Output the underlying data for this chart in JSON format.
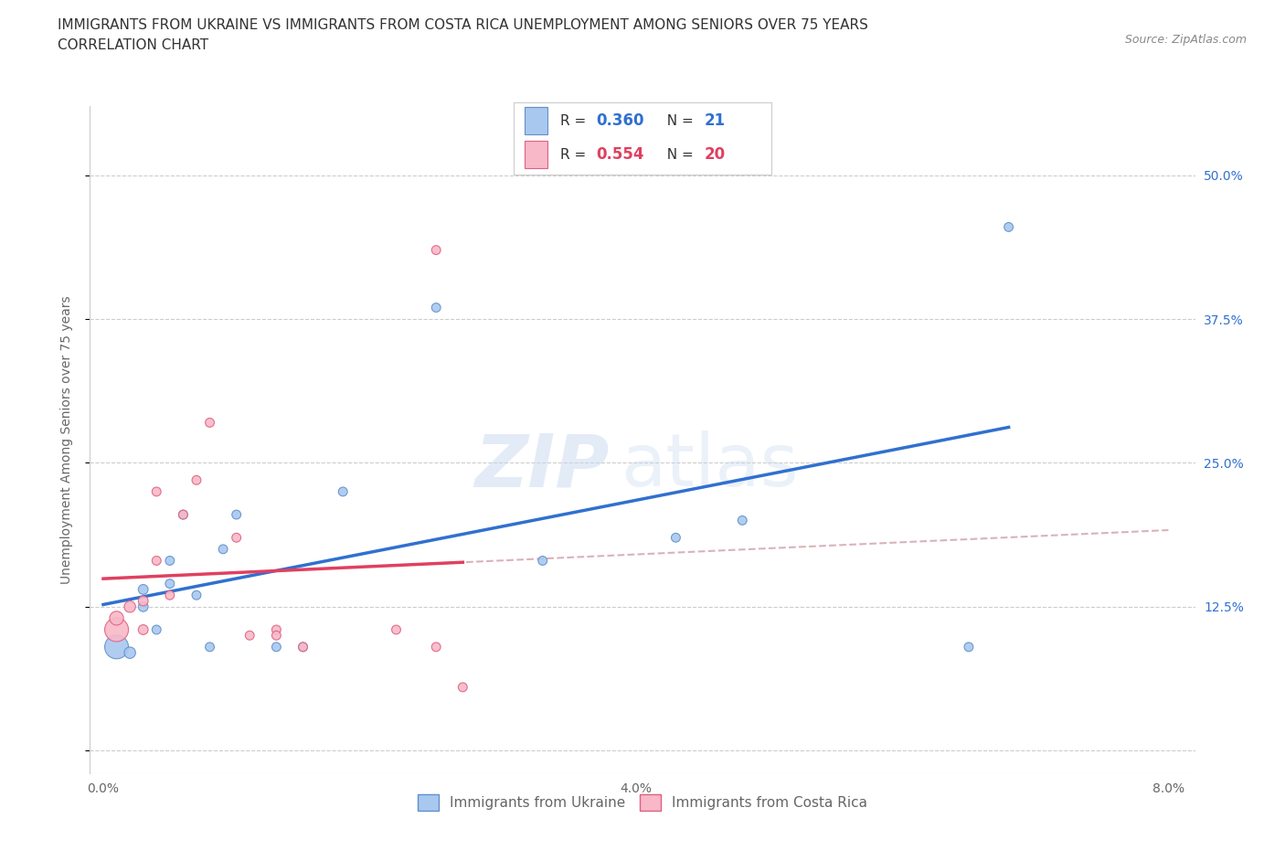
{
  "title_line1": "IMMIGRANTS FROM UKRAINE VS IMMIGRANTS FROM COSTA RICA UNEMPLOYMENT AMONG SENIORS OVER 75 YEARS",
  "title_line2": "CORRELATION CHART",
  "source_text": "Source: ZipAtlas.com",
  "ylabel": "Unemployment Among Seniors over 75 years",
  "watermark_text": "ZIP",
  "watermark_text2": "atlas",
  "ukraine_x": [
    0.001,
    0.002,
    0.003,
    0.003,
    0.004,
    0.005,
    0.005,
    0.006,
    0.007,
    0.008,
    0.009,
    0.01,
    0.013,
    0.015,
    0.018,
    0.025,
    0.033,
    0.043,
    0.048,
    0.065,
    0.068
  ],
  "ukraine_y": [
    0.09,
    0.085,
    0.14,
    0.125,
    0.105,
    0.145,
    0.165,
    0.205,
    0.135,
    0.09,
    0.175,
    0.205,
    0.09,
    0.09,
    0.225,
    0.385,
    0.165,
    0.185,
    0.2,
    0.09,
    0.455
  ],
  "ukraine_sizes": [
    350,
    80,
    60,
    60,
    50,
    50,
    50,
    50,
    50,
    50,
    50,
    50,
    50,
    50,
    50,
    50,
    50,
    50,
    50,
    50,
    50
  ],
  "costarica_x": [
    0.001,
    0.001,
    0.002,
    0.003,
    0.003,
    0.004,
    0.004,
    0.005,
    0.006,
    0.007,
    0.008,
    0.01,
    0.011,
    0.013,
    0.013,
    0.015,
    0.022,
    0.025,
    0.025,
    0.027
  ],
  "costarica_y": [
    0.105,
    0.115,
    0.125,
    0.105,
    0.13,
    0.165,
    0.225,
    0.135,
    0.205,
    0.235,
    0.285,
    0.185,
    0.1,
    0.105,
    0.1,
    0.09,
    0.105,
    0.435,
    0.09,
    0.055
  ],
  "costarica_sizes": [
    350,
    120,
    80,
    60,
    60,
    50,
    50,
    50,
    50,
    50,
    50,
    50,
    50,
    50,
    50,
    50,
    50,
    50,
    50,
    50
  ],
  "ukraine_color": "#a8c8f0",
  "ukraine_edge_color": "#6090c8",
  "costarica_color": "#f8b8c8",
  "costarica_edge_color": "#e06080",
  "ukraine_line_color": "#3070d0",
  "costarica_line_color": "#e04060",
  "dashed_line_color": "#d0a0a8",
  "R_ukraine": 0.36,
  "N_ukraine": 21,
  "R_costarica": 0.554,
  "N_costarica": 20,
  "xlim": [
    -0.001,
    0.082
  ],
  "ylim": [
    -0.02,
    0.56
  ],
  "xticks": [
    0.0,
    0.02,
    0.04,
    0.06,
    0.08
  ],
  "xtick_labels": [
    "0.0%",
    "",
    "4.0%",
    "",
    "8.0%"
  ],
  "yticks": [
    0.0,
    0.125,
    0.25,
    0.375,
    0.5
  ],
  "ytick_labels_right": [
    "",
    "12.5%",
    "25.0%",
    "37.5%",
    "50.0%"
  ],
  "grid_color": "#cccccc",
  "background_color": "#ffffff",
  "title_fontsize": 11,
  "subtitle_fontsize": 11,
  "axis_label_fontsize": 10,
  "tick_fontsize": 10,
  "legend_fontsize": 11,
  "source_fontsize": 9
}
